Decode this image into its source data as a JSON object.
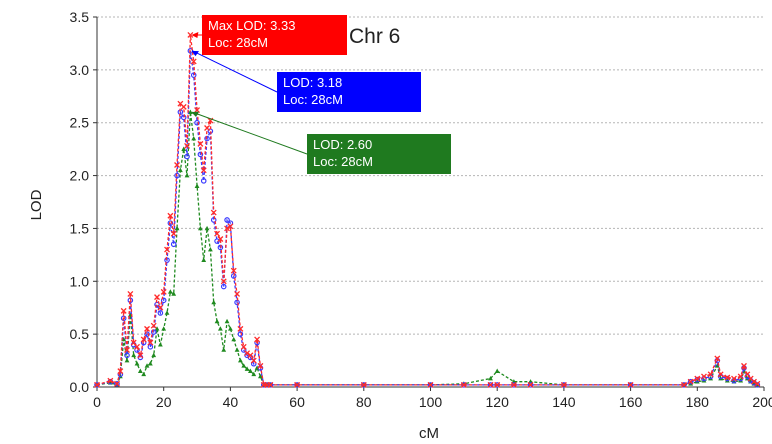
{
  "chart_data": {
    "type": "line",
    "title": "Chr 6",
    "xlabel": "cM",
    "ylabel": "LOD",
    "xlim": [
      0,
      200
    ],
    "ylim": [
      0,
      3.5
    ],
    "xticks": [
      "0",
      "20",
      "40",
      "60",
      "80",
      "100",
      "120",
      "140",
      "160",
      "180",
      "200"
    ],
    "yticks": [
      "0.0",
      "0.5",
      "1.0",
      "1.5",
      "2.0",
      "2.5",
      "3.0",
      "3.5"
    ],
    "grid": "horizontal dashed",
    "legend": "none",
    "series": [
      {
        "color": "#ff2a2a",
        "marker": "x",
        "x": [
          0,
          4,
          6,
          7,
          8,
          9,
          10,
          11,
          12,
          13,
          14,
          15,
          16,
          17,
          18,
          19,
          20,
          21,
          22,
          23,
          24,
          25,
          26,
          27,
          28,
          29,
          30,
          31,
          32,
          33,
          34,
          35,
          36,
          37,
          38,
          39,
          40,
          41,
          42,
          43,
          44,
          45,
          46,
          47,
          48,
          49,
          50,
          51,
          52,
          60,
          80,
          100,
          110,
          118,
          120,
          125,
          130,
          140,
          160,
          176,
          178,
          180,
          182,
          184,
          186,
          187,
          189,
          191,
          193,
          194,
          195,
          196,
          197,
          198
        ],
        "y": [
          0.02,
          0.06,
          0.03,
          0.15,
          0.72,
          0.35,
          0.88,
          0.42,
          0.38,
          0.3,
          0.45,
          0.55,
          0.42,
          0.58,
          0.85,
          0.75,
          0.9,
          1.3,
          1.62,
          1.45,
          2.1,
          2.68,
          2.65,
          2.28,
          3.33,
          3.08,
          2.62,
          2.3,
          2.05,
          2.45,
          2.52,
          1.65,
          1.45,
          1.4,
          1.0,
          1.5,
          1.52,
          1.1,
          0.88,
          0.55,
          0.38,
          0.32,
          0.3,
          0.25,
          0.45,
          0.2,
          0.02,
          0.02,
          0.02,
          0.02,
          0.02,
          0.02,
          0.02,
          0.02,
          0.02,
          0.02,
          0.02,
          0.02,
          0.02,
          0.02,
          0.05,
          0.08,
          0.1,
          0.12,
          0.27,
          0.12,
          0.09,
          0.08,
          0.1,
          0.2,
          0.12,
          0.08,
          0.05,
          0.03
        ]
      },
      {
        "color": "#3a3aff",
        "marker": "o",
        "x": [
          0,
          4,
          6,
          7,
          8,
          9,
          10,
          11,
          12,
          13,
          14,
          15,
          16,
          17,
          18,
          19,
          20,
          21,
          22,
          23,
          24,
          25,
          26,
          27,
          28,
          29,
          30,
          31,
          32,
          33,
          34,
          35,
          36,
          37,
          38,
          39,
          40,
          41,
          42,
          43,
          44,
          45,
          46,
          47,
          48,
          49,
          50,
          51,
          52,
          60,
          80,
          100,
          110,
          118,
          120,
          125,
          130,
          140,
          160,
          176,
          178,
          180,
          182,
          184,
          186,
          187,
          189,
          191,
          193,
          194,
          195,
          196,
          197,
          198
        ],
        "y": [
          0.02,
          0.05,
          0.03,
          0.12,
          0.65,
          0.3,
          0.82,
          0.4,
          0.35,
          0.28,
          0.42,
          0.5,
          0.38,
          0.52,
          0.78,
          0.7,
          0.82,
          1.2,
          1.55,
          1.35,
          2.0,
          2.6,
          2.55,
          2.18,
          3.18,
          2.95,
          2.5,
          2.2,
          1.95,
          2.35,
          2.42,
          1.58,
          1.38,
          1.32,
          0.95,
          1.58,
          1.55,
          1.05,
          0.8,
          0.5,
          0.35,
          0.3,
          0.28,
          0.22,
          0.42,
          0.18,
          0.02,
          0.02,
          0.02,
          0.02,
          0.02,
          0.02,
          0.02,
          0.02,
          0.02,
          0.02,
          0.02,
          0.02,
          0.02,
          0.02,
          0.05,
          0.07,
          0.08,
          0.1,
          0.25,
          0.1,
          0.08,
          0.06,
          0.08,
          0.18,
          0.1,
          0.06,
          0.04,
          0.02
        ]
      },
      {
        "color": "#1f8a1f",
        "marker": "triangle",
        "x": [
          0,
          4,
          6,
          7,
          8,
          9,
          10,
          11,
          12,
          13,
          14,
          15,
          16,
          17,
          18,
          19,
          20,
          21,
          22,
          23,
          24,
          25,
          26,
          27,
          28,
          29,
          30,
          31,
          32,
          33,
          34,
          35,
          36,
          37,
          38,
          39,
          40,
          41,
          42,
          43,
          44,
          45,
          46,
          47,
          48,
          49,
          50,
          51,
          52,
          60,
          80,
          100,
          110,
          118,
          120,
          125,
          130,
          140,
          160,
          176,
          178,
          180,
          182,
          184,
          186,
          187,
          189,
          191,
          193,
          194,
          195,
          196,
          197,
          198
        ],
        "y": [
          0.02,
          0.04,
          0.02,
          0.1,
          0.45,
          0.25,
          0.68,
          0.3,
          0.22,
          0.15,
          0.12,
          0.2,
          0.22,
          0.3,
          0.55,
          0.4,
          0.55,
          0.7,
          0.9,
          0.88,
          1.5,
          2.05,
          2.25,
          2.0,
          2.6,
          2.35,
          1.9,
          1.5,
          1.2,
          1.5,
          1.3,
          0.8,
          0.62,
          0.55,
          0.35,
          0.62,
          0.55,
          0.45,
          0.35,
          0.25,
          0.2,
          0.17,
          0.15,
          0.12,
          0.18,
          0.1,
          0.02,
          0.02,
          0.02,
          0.02,
          0.02,
          0.02,
          0.03,
          0.08,
          0.15,
          0.05,
          0.05,
          0.02,
          0.02,
          0.02,
          0.03,
          0.05,
          0.06,
          0.08,
          0.2,
          0.08,
          0.06,
          0.05,
          0.06,
          0.15,
          0.08,
          0.05,
          0.03,
          0.02
        ]
      }
    ],
    "annotations": [
      {
        "lines": [
          "Max LOD: 3.33",
          "Loc: 28cM"
        ],
        "point": [
          28,
          3.33
        ],
        "color": "#ff0000"
      },
      {
        "lines": [
          "LOD: 3.18",
          "Loc: 28cM"
        ],
        "point": [
          28,
          3.18
        ],
        "color": "#0000ff"
      },
      {
        "lines": [
          "LOD: 2.60",
          "Loc: 28cM"
        ],
        "point": [
          28,
          2.6
        ],
        "color": "#1f7a1f"
      }
    ]
  }
}
